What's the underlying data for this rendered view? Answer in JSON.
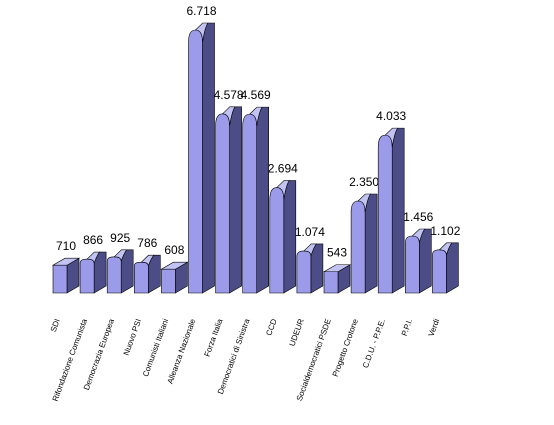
{
  "chart_data": {
    "type": "bar",
    "style": "3d-cone-bars",
    "categories": [
      "SDI",
      "Rifondazione Comunista",
      "Democrazia Europea",
      "Nuovo PSI",
      "Comunisti Italiani",
      "Alleanza Nazionale",
      "Forza Italia",
      "Democratici di Sinistra",
      "CCD",
      "UDEUR",
      "Socialdemocratici PSDE",
      "Progetto Crotone",
      "C.D.U. - P.P.E.",
      "P.P.I.",
      "Verdi"
    ],
    "values": [
      710,
      866,
      925,
      786,
      608,
      6718,
      4578,
      4569,
      2694,
      1074,
      543,
      2350,
      4033,
      1456,
      1102
    ],
    "value_labels": [
      "710",
      "866",
      "925",
      "786",
      "608",
      "6.718",
      "4.578",
      "4.569",
      "2.694",
      "1.074",
      "543",
      "2.350",
      "4.033",
      "1.456",
      "1.102"
    ],
    "ylim": [
      0,
      6718
    ],
    "grid": false,
    "legend": "none",
    "colors": {
      "front": "#9b9bea",
      "side": "#4c4c86",
      "top": "#c3c3f3",
      "base": "#8c8cd8"
    }
  }
}
